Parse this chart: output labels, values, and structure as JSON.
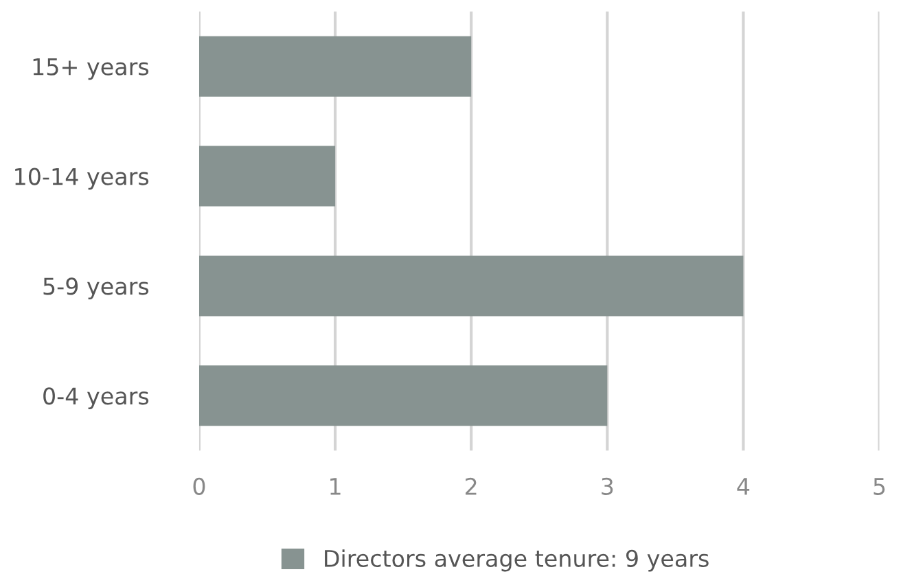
{
  "chart_data": {
    "type": "bar",
    "orientation": "horizontal",
    "categories": [
      "15+ years",
      "10-14 years",
      "5-9 years",
      "0-4 years"
    ],
    "series": [
      {
        "name": "Directors average tenure: 9 years",
        "color": "#879391",
        "values": [
          2,
          1,
          4,
          3
        ]
      }
    ],
    "xlim": [
      0,
      5
    ],
    "xticks": [
      0,
      1,
      2,
      3,
      4,
      5
    ],
    "grid": "x",
    "legend": "bottom"
  }
}
